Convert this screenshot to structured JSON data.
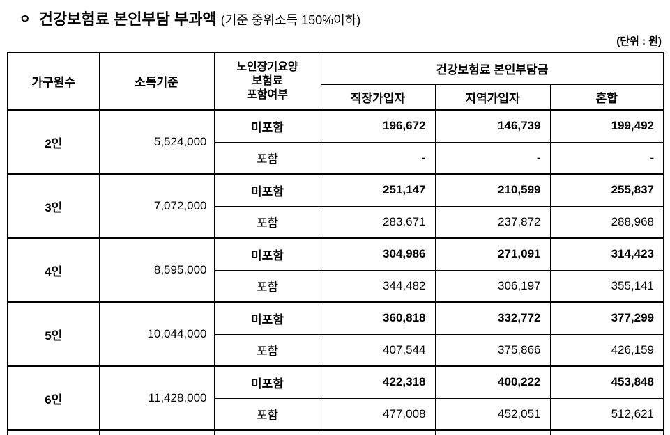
{
  "title": {
    "bullet": "ㅇ",
    "main": "건강보험료 본인부담 부과액",
    "sub": "(기준 중위소득 150%이하)"
  },
  "unit_note": "(단위 : 원)",
  "table": {
    "headers": {
      "household": "가구원수",
      "income": "소득기준",
      "ltc": [
        "노인장기요양",
        "보험료",
        "포함여부"
      ],
      "group": "건강보험료 본인부담금",
      "sub": [
        "직장가입자",
        "지역가입자",
        "혼합"
      ]
    },
    "groups": [
      {
        "household": "2인",
        "income": "5,524,000",
        "rows": [
          {
            "inclusion": "미포함",
            "bold": true,
            "values": [
              "196,672",
              "146,739",
              "199,492"
            ]
          },
          {
            "inclusion": "포함",
            "bold": false,
            "values": [
              "-",
              "-",
              "-"
            ]
          }
        ]
      },
      {
        "household": "3인",
        "income": "7,072,000",
        "rows": [
          {
            "inclusion": "미포함",
            "bold": true,
            "values": [
              "251,147",
              "210,599",
              "255,837"
            ]
          },
          {
            "inclusion": "포함",
            "bold": false,
            "values": [
              "283,671",
              "237,872",
              "288,968"
            ]
          }
        ]
      },
      {
        "household": "4인",
        "income": "8,595,000",
        "rows": [
          {
            "inclusion": "미포함",
            "bold": true,
            "values": [
              "304,986",
              "271,091",
              "314,423"
            ]
          },
          {
            "inclusion": "포함",
            "bold": false,
            "values": [
              "344,482",
              "306,197",
              "355,141"
            ]
          }
        ]
      },
      {
        "household": "5인",
        "income": "10,044,000",
        "rows": [
          {
            "inclusion": "미포함",
            "bold": true,
            "values": [
              "360,818",
              "332,772",
              "377,299"
            ]
          },
          {
            "inclusion": "포함",
            "bold": false,
            "values": [
              "407,544",
              "375,866",
              "426,159"
            ]
          }
        ]
      },
      {
        "household": "6인",
        "income": "11,428,000",
        "rows": [
          {
            "inclusion": "미포함",
            "bold": true,
            "values": [
              "422,318",
              "400,222",
              "453,848"
            ]
          },
          {
            "inclusion": "포함",
            "bold": false,
            "values": [
              "477,008",
              "452,051",
              "512,621"
            ]
          }
        ]
      }
    ]
  }
}
